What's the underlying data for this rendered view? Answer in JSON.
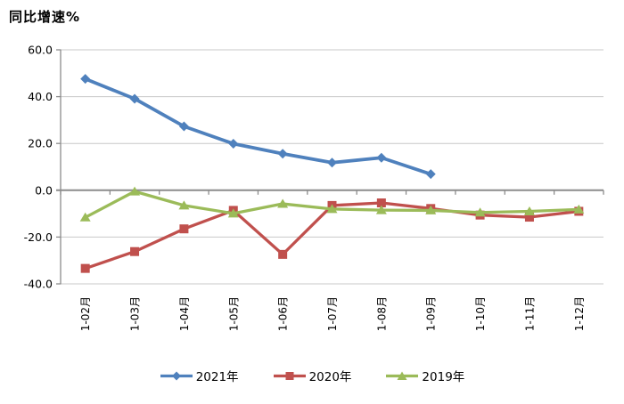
{
  "chart_data": {
    "type": "line",
    "title": "同比增速%",
    "categories": [
      "1-02月",
      "1-03月",
      "1-04月",
      "1-05月",
      "1-06月",
      "1-07月",
      "1-08月",
      "1-09月",
      "1-10月",
      "1-11月",
      "1-12月"
    ],
    "series": [
      {
        "name": "2021年",
        "color": "#4F81BD",
        "marker": "diamond",
        "values": [
          47.6,
          39.1,
          27.3,
          19.9,
          15.6,
          11.8,
          13.9,
          6.9,
          null,
          null,
          null
        ]
      },
      {
        "name": "2020年",
        "color": "#C0504D",
        "marker": "square",
        "values": [
          -33.4,
          -26.2,
          -16.5,
          -8.6,
          -27.4,
          -6.5,
          -5.4,
          -7.8,
          -10.6,
          -11.5,
          -9.0
        ]
      },
      {
        "name": "2019年",
        "color": "#9BBB59",
        "marker": "triangle",
        "values": [
          -11.6,
          -0.5,
          -6.5,
          -9.9,
          -5.8,
          -8.0,
          -8.5,
          -8.6,
          -9.5,
          -9.0,
          -8.2
        ]
      }
    ],
    "ylim": [
      -40,
      60
    ],
    "yticks": [
      60,
      40,
      20,
      0,
      -20,
      -40
    ],
    "ytick_labels": [
      "60.0",
      "40.0",
      "20.0",
      "0.0",
      "-20.0",
      "-40.0"
    ],
    "grid": true,
    "legend_position": "bottom",
    "colors": {
      "gridline": "#C8C8C8",
      "axis": "#8C8C8C",
      "text": "#000000",
      "background": "#FFFFFF"
    }
  }
}
